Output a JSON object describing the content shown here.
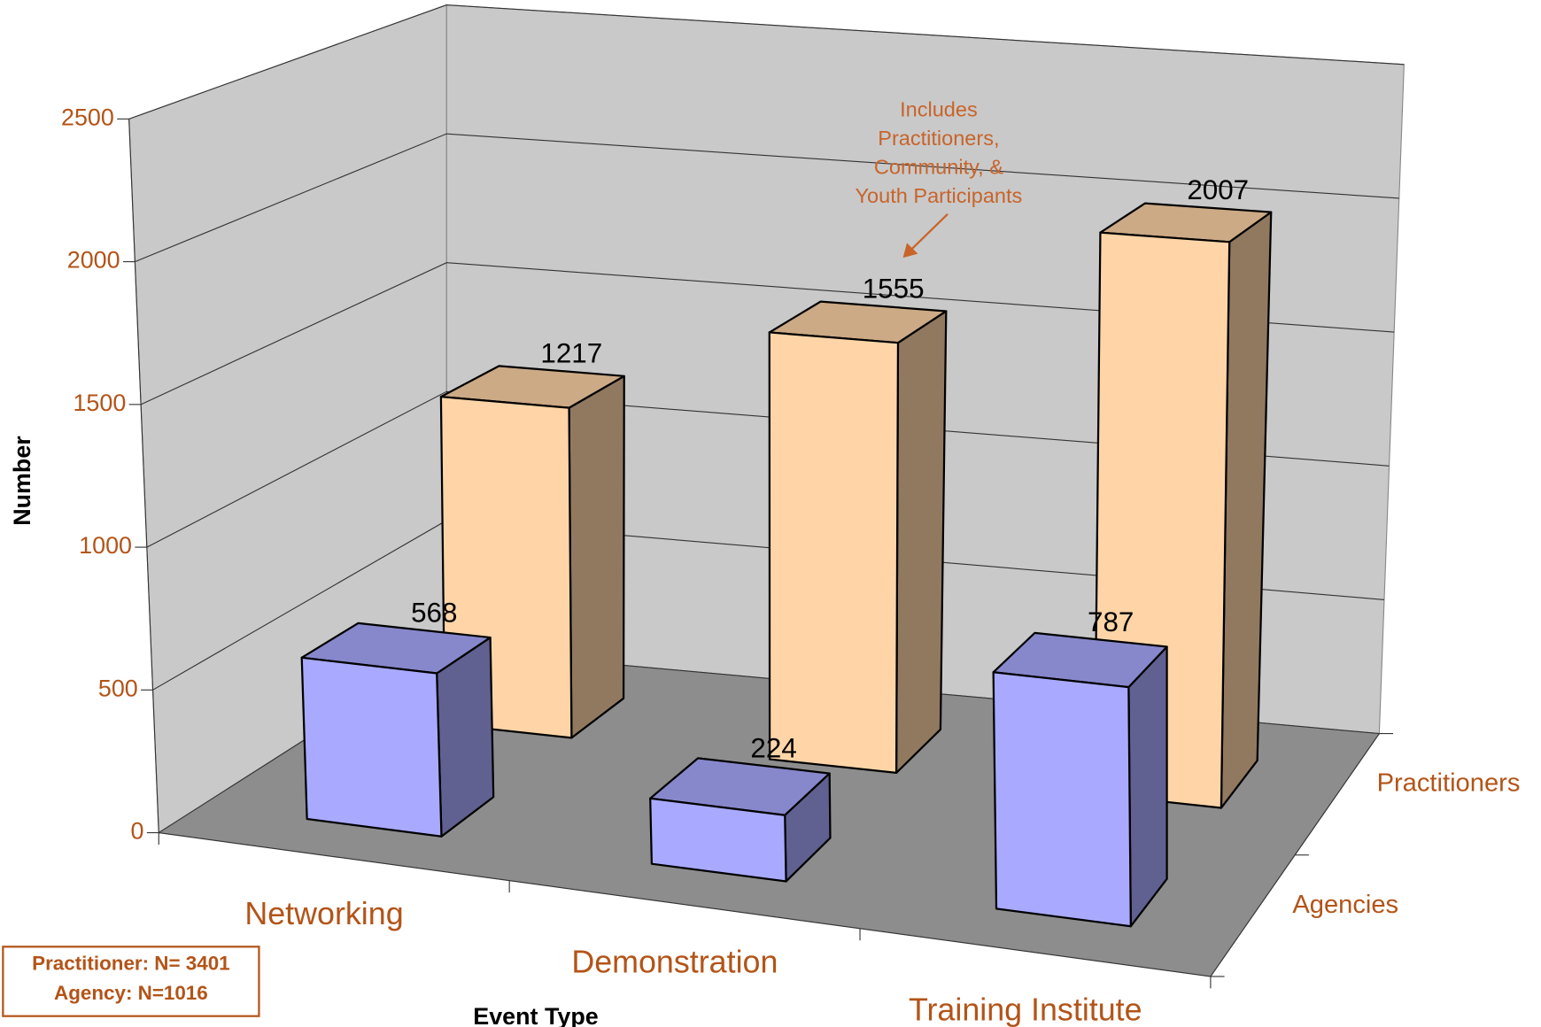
{
  "chart_data": {
    "type": "bar3d",
    "categories": [
      "Networking",
      "Demonstration",
      "Training Institute"
    ],
    "series": [
      {
        "name": "Agencies",
        "color": "#a9aaff",
        "values": [
          568,
          224,
          787
        ]
      },
      {
        "name": "Practitioners",
        "color": "#ffd5a8",
        "values": [
          1217,
          1555,
          2007
        ]
      }
    ],
    "ylim": [
      0,
      2500
    ],
    "yticks": [
      0,
      500,
      1000,
      1500,
      2000,
      2500
    ],
    "grid": true,
    "y_label": "Number",
    "x_label": "Event Type",
    "annotation": [
      "Includes",
      "Practitioners,",
      "Community, &",
      "Youth Participants"
    ],
    "note": [
      "Practitioner: N= 3401",
      "Agency: N=1016"
    ]
  }
}
